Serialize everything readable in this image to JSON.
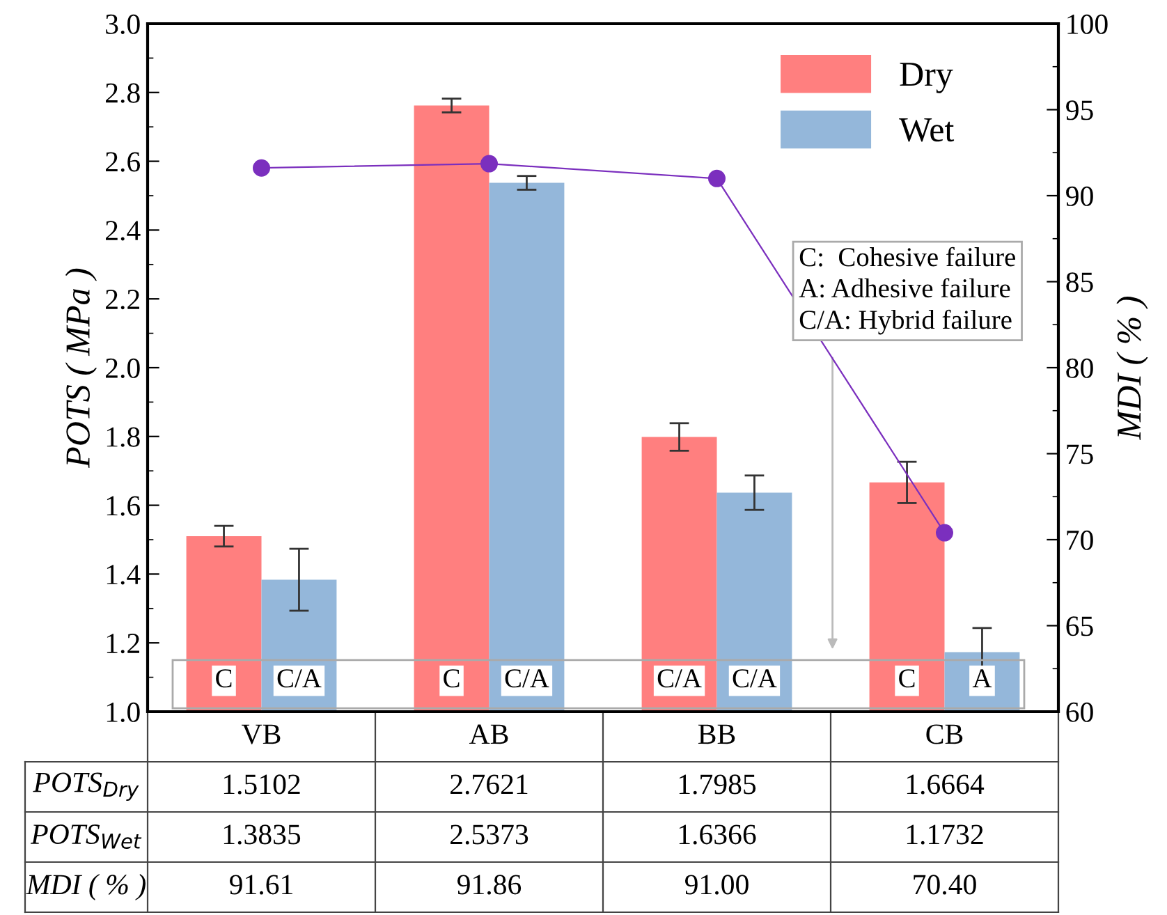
{
  "chart_data": {
    "type": "bar",
    "categories": [
      "VB",
      "AB",
      "BB",
      "CB"
    ],
    "ylabel": "POTS ( MPa )",
    "y2label": "MDI ( % )",
    "series": [
      {
        "name": "Dry",
        "color": "#ff7f7f",
        "values": [
          1.5102,
          2.7621,
          1.7985,
          1.6664
        ],
        "errors": [
          0.03,
          0.02,
          0.04,
          0.06
        ],
        "value_labels": [
          "1.5102",
          "2.7621",
          "1.7985",
          "1.6664"
        ]
      },
      {
        "name": "Wet",
        "color": "#94b7da",
        "values": [
          1.3835,
          2.5373,
          1.6366,
          1.1732
        ],
        "errors": [
          0.09,
          0.02,
          0.05,
          0.07
        ],
        "value_labels": [
          "1.3835",
          "2.5373",
          "1.6366",
          "1.1732"
        ]
      },
      {
        "type": "line",
        "axis": "y2",
        "color": "#7b2fbe",
        "marker": "circle",
        "values": [
          91.61,
          91.86,
          91.0,
          70.4
        ],
        "value_labels": [
          "91.61",
          "91.86",
          "91.00",
          "70.40"
        ]
      }
    ],
    "ylim": [
      1.0,
      3.0
    ],
    "yticks": [
      {
        "value": 1.0,
        "label": "1.0"
      },
      1.2,
      1.4,
      1.6,
      1.8,
      {
        "value": 2.0,
        "label": "2.0"
      },
      2.2,
      2.4,
      2.6,
      2.8,
      {
        "value": 3.0,
        "label": "3.0"
      }
    ],
    "y2lim": [
      60,
      100
    ],
    "y2ticks": [
      60,
      65,
      70,
      75,
      80,
      85,
      90,
      95,
      100
    ],
    "legend": "top right",
    "grid": false,
    "annotations": [
      "C:  Cohesive failure\nA: Adhesive failure\nC/A: Hybrid failure",
      "POTS$_{Dry}$",
      "POTS$_{Wet}$",
      "MDI ( % )",
      "C",
      "C/A",
      "C",
      "C/A",
      "C/A",
      "C/A",
      "C",
      "A"
    ]
  }
}
